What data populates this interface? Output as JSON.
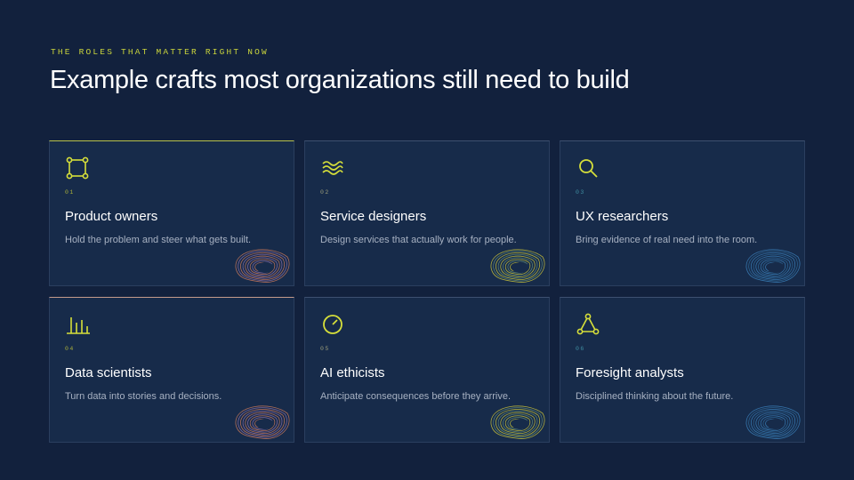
{
  "eyebrow": "THE ROLES THAT MATTER RIGHT NOW",
  "title": "Example crafts most organizations still need to build",
  "cards": [
    {
      "number": "01",
      "title": "Product owners",
      "description": "Hold the problem and steer what gets built."
    },
    {
      "number": "02",
      "title": "Service designers",
      "description": "Design services that actually work for people."
    },
    {
      "number": "03",
      "title": "UX researchers",
      "description": "Bring evidence of real need into the room."
    },
    {
      "number": "04",
      "title": "Data scientists",
      "description": "Turn data into stories and decisions."
    },
    {
      "number": "05",
      "title": "AI ethicists",
      "description": "Anticipate consequences before they arrive."
    },
    {
      "number": "06",
      "title": "Foresight analysts",
      "description": "Disciplined thinking about the future."
    }
  ]
}
